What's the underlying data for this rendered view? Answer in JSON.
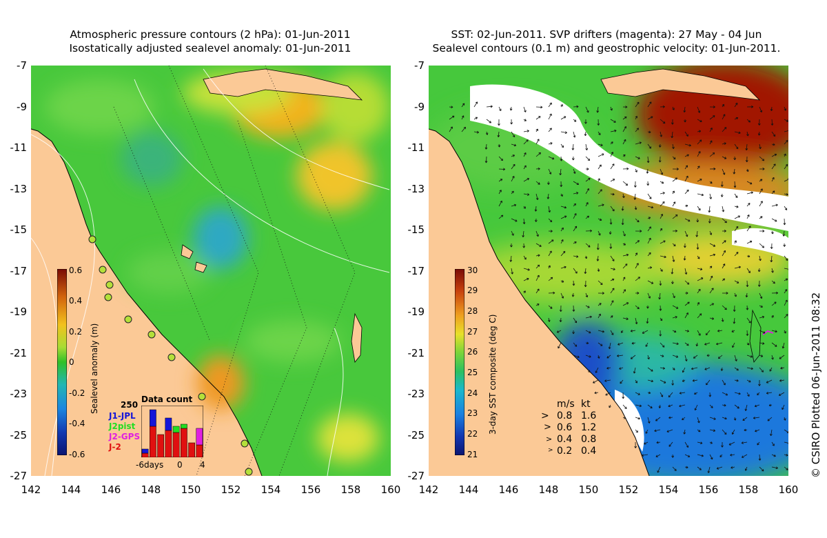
{
  "left_panel": {
    "title": "Atmospheric pressure contours (2 hPa): 01-Jun-2011\nIsostatically adjusted sealevel anomaly: 01-Jun-2011",
    "colorbar": {
      "label": "Sealevel anomaly (m)",
      "ticks": [
        "0.6",
        "0.4",
        "0.2",
        "0",
        "-0.2",
        "-0.4",
        "-0.6"
      ]
    },
    "data_count": {
      "title": "Data count",
      "max_label": "250",
      "series": [
        {
          "name": "J1-JPL",
          "color": "#1515d8"
        },
        {
          "name": "J2pist",
          "color": "#22dd22"
        },
        {
          "name": "J2-GPS",
          "color": "#e020e0"
        },
        {
          "name": "J-2",
          "color": "#e01010"
        }
      ],
      "x_labels": [
        "-6days",
        "0",
        "4"
      ],
      "bars": [
        {
          "red": 20,
          "blue": 20,
          "green": 0,
          "magenta": 0
        },
        {
          "red": 150,
          "blue": 80,
          "green": 0,
          "magenta": 0
        },
        {
          "red": 110,
          "blue": 0,
          "green": 0,
          "magenta": 0
        },
        {
          "red": 130,
          "blue": 60,
          "green": 0,
          "magenta": 0
        },
        {
          "red": 120,
          "blue": 0,
          "green": 30,
          "magenta": 0
        },
        {
          "red": 140,
          "blue": 0,
          "green": 20,
          "magenta": 0
        },
        {
          "red": 70,
          "blue": 0,
          "green": 0,
          "magenta": 0
        },
        {
          "red": 60,
          "blue": 0,
          "green": 0,
          "magenta": 80
        }
      ]
    }
  },
  "right_panel": {
    "title": "SST: 02-Jun-2011. SVP drifters (magenta): 27 May - 04 Jun\nSealevel contours (0.1 m) and geostrophic velocity: 01-Jun-2011.",
    "colorbar": {
      "label": "3-day SST composite (deg C)",
      "ticks": [
        "30",
        "29",
        "28",
        "27",
        "26",
        "25",
        "24",
        "23",
        "22",
        "21"
      ]
    },
    "velocity_legend": {
      "header_ms": "m/s",
      "header_kt": "kt",
      "rows": [
        {
          "ms": "0.8",
          "kt": "1.6"
        },
        {
          "ms": "0.6",
          "kt": "1.2"
        },
        {
          "ms": "0.4",
          "kt": "0.8"
        },
        {
          "ms": "0.2",
          "kt": "0.4"
        }
      ]
    }
  },
  "axes": {
    "y_ticks": [
      "-7",
      "-9",
      "-11",
      "-13",
      "-15",
      "-17",
      "-19",
      "-21",
      "-23",
      "-25",
      "-27"
    ],
    "x_ticks": [
      "142",
      "144",
      "146",
      "148",
      "150",
      "152",
      "154",
      "156",
      "158",
      "160"
    ]
  },
  "copyright": "© CSIRO Plotted 06-Jun-2011 08:32",
  "colors": {
    "land": "#fbc996",
    "ocean_green": "#46c83c",
    "ocean_yellow": "#bce03a",
    "cloud": "#ffffff",
    "sst_hot": "#a11200",
    "sst_cold": "#1a5fd8"
  }
}
